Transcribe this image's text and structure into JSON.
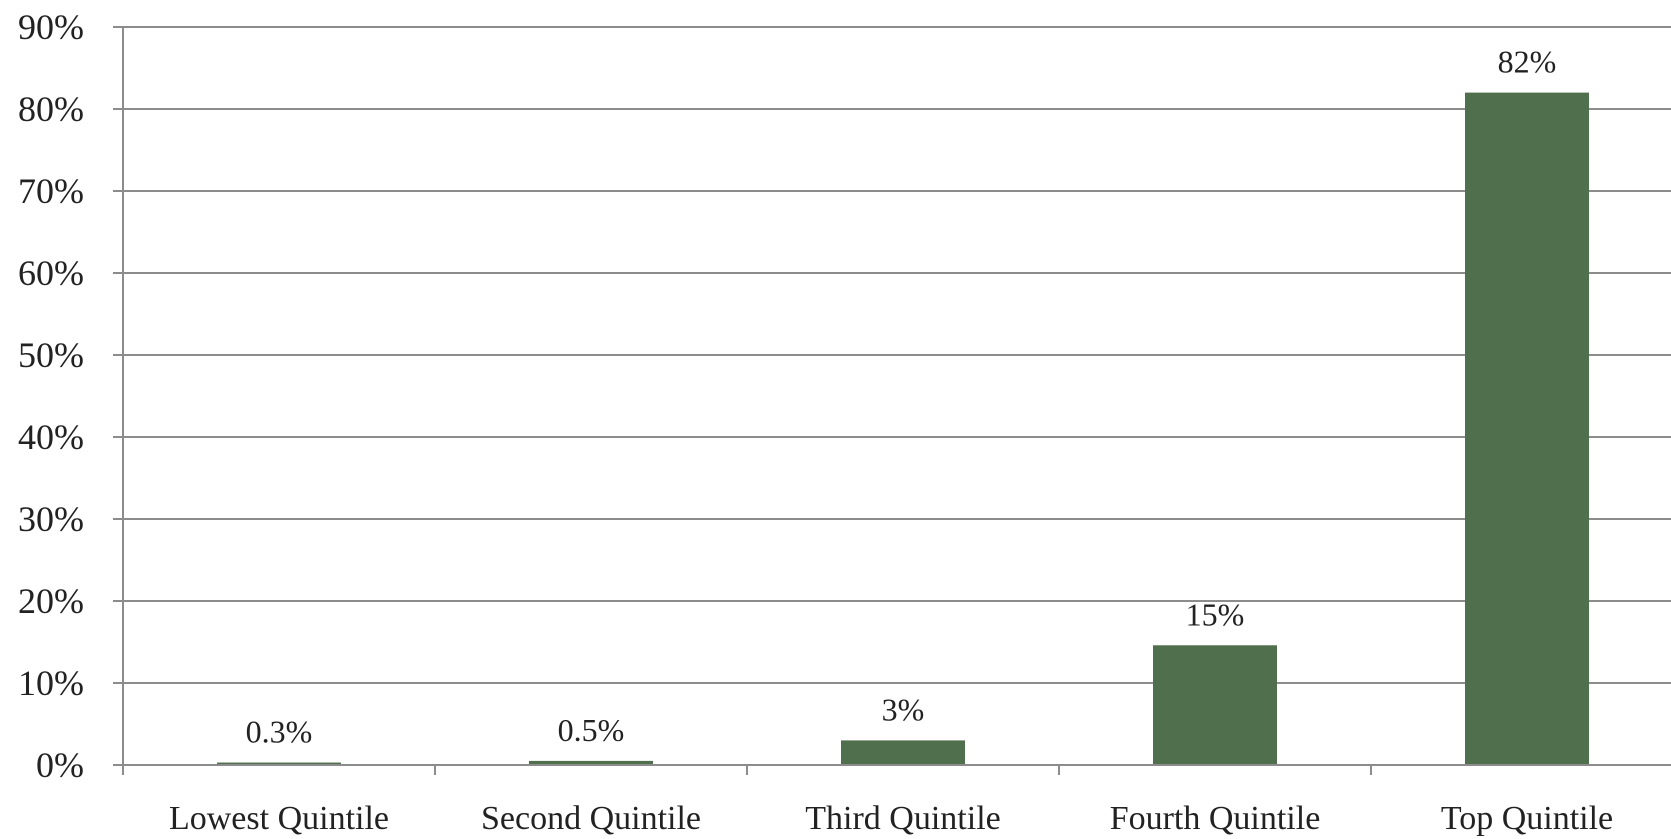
{
  "chart_data": {
    "type": "bar",
    "title": "",
    "xlabel": "",
    "ylabel": "",
    "categories": [
      "Lowest Quintile",
      "Second Quintile",
      "Third Quintile",
      "Fourth Quintile",
      "Top Quintile"
    ],
    "values": [
      0.3,
      0.5,
      3,
      14.6,
      82
    ],
    "data_labels": [
      "0.3%",
      "0.5%",
      "3%",
      "15%",
      "82%"
    ],
    "ylim": [
      0,
      90
    ],
    "yticks": [
      0,
      10,
      20,
      30,
      40,
      50,
      60,
      70,
      80,
      90
    ],
    "ytick_labels": [
      "0%",
      "10%",
      "20%",
      "30%",
      "40%",
      "50%",
      "60%",
      "70%",
      "80%",
      "90%"
    ],
    "grid": true,
    "legend": "none",
    "bar_color": "#4f6f4d"
  }
}
